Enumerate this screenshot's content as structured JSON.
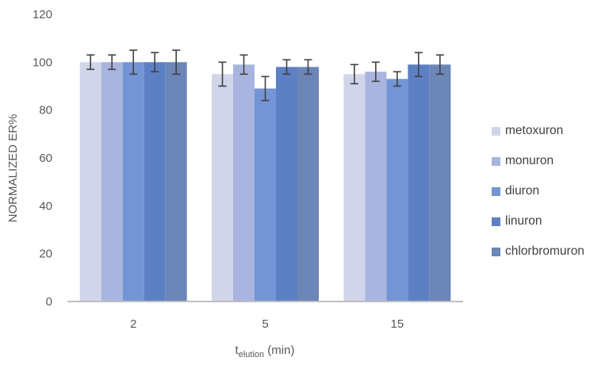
{
  "chart_data": {
    "type": "bar",
    "xlabel_main": "t",
    "xlabel_sub": "elution",
    "xlabel_unit": " (min)",
    "ylabel": "NORMALIZED ER%",
    "ylim": [
      0,
      120
    ],
    "yticks": [
      "0",
      "20",
      "40",
      "60",
      "80",
      "100",
      "120"
    ],
    "categories": [
      "2",
      "5",
      "15"
    ],
    "legend_position": "right",
    "grid": false,
    "series": [
      {
        "name": "metoxuron",
        "color": "#d1d5ea",
        "values": [
          100,
          95,
          95
        ],
        "errors": [
          3,
          5,
          4
        ]
      },
      {
        "name": "monuron",
        "color": "#a9b5df",
        "values": [
          100,
          99,
          96
        ],
        "errors": [
          3,
          4,
          4
        ]
      },
      {
        "name": "diuron",
        "color": "#7395d6",
        "values": [
          100,
          89,
          93
        ],
        "errors": [
          5,
          5,
          3
        ]
      },
      {
        "name": "linuron",
        "color": "#5c80c3",
        "values": [
          100,
          98,
          99
        ],
        "errors": [
          4,
          3,
          5
        ]
      },
      {
        "name": "chlorbromuron",
        "color": "#6b86b7",
        "values": [
          100,
          98,
          99
        ],
        "errors": [
          5,
          3,
          4
        ]
      }
    ]
  }
}
